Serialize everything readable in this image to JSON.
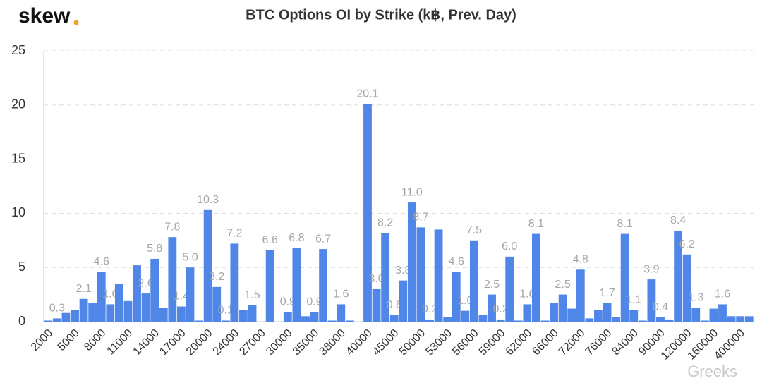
{
  "logo": "skew",
  "watermark": "Greeks",
  "chart_data": {
    "type": "bar",
    "title": "BTC Options OI by Strike (k฿, Prev. Day)",
    "categories": [
      "2000",
      null,
      null,
      "5000",
      null,
      null,
      "8000",
      null,
      null,
      "11000",
      null,
      null,
      "14000",
      null,
      null,
      "17000",
      null,
      null,
      "20000",
      null,
      null,
      "24000",
      null,
      null,
      "27000",
      null,
      null,
      "30000",
      null,
      null,
      "35000",
      null,
      null,
      "38000",
      null,
      null,
      "40000",
      null,
      null,
      "45000",
      null,
      null,
      "50000",
      null,
      null,
      "53000",
      null,
      null,
      "56000",
      null,
      null,
      "59000",
      null,
      null,
      "62000",
      null,
      null,
      "66000",
      null,
      null,
      "72000",
      null,
      null,
      "76000",
      null,
      null,
      "84000",
      null,
      null,
      "90000",
      null,
      null,
      "120000",
      null,
      null,
      "160000",
      null,
      null,
      "400000",
      null
    ],
    "values": [
      0.1,
      0.3,
      0.8,
      1.1,
      2.1,
      1.7,
      4.6,
      1.6,
      3.5,
      1.9,
      5.2,
      2.6,
      5.8,
      1.3,
      7.8,
      1.4,
      5.0,
      0.1,
      10.3,
      3.2,
      0.1,
      7.2,
      1.1,
      1.5,
      0,
      6.6,
      0,
      0.9,
      6.8,
      0.5,
      0.9,
      6.7,
      0.1,
      1.6,
      0.1,
      0,
      20.1,
      3.0,
      8.2,
      0.6,
      3.8,
      11.0,
      8.7,
      0.2,
      8.5,
      0.4,
      4.6,
      1.0,
      7.5,
      0.6,
      2.5,
      0.2,
      6.0,
      0.1,
      1.6,
      8.1,
      0.1,
      1.7,
      2.5,
      1.2,
      4.8,
      0.3,
      1.1,
      1.7,
      0.4,
      8.1,
      1.1,
      0.1,
      3.9,
      0.4,
      0.2,
      8.4,
      6.2,
      1.3,
      0.1,
      1.2,
      1.6,
      0.5,
      0.5,
      0.5
    ],
    "value_labels": [
      null,
      "0.3",
      null,
      null,
      "2.1",
      null,
      "4.6",
      "1.6",
      null,
      null,
      null,
      "2.6",
      "5.8",
      null,
      "7.8",
      "1.4",
      "5.0",
      null,
      "10.3",
      "3.2",
      "0.1",
      "7.2",
      null,
      "1.5",
      null,
      "6.6",
      null,
      "0.9",
      "6.8",
      null,
      "0.9",
      "6.7",
      null,
      "1.6",
      null,
      null,
      "20.1",
      "3.0",
      "8.2",
      "0.6",
      "3.8",
      "11.0",
      "8.7",
      "0.2",
      null,
      null,
      "4.6",
      "1.0",
      "7.5",
      null,
      "2.5",
      "0.2",
      "6.0",
      null,
      "1.6",
      "8.1",
      null,
      null,
      "2.5",
      null,
      "4.8",
      null,
      null,
      "1.7",
      null,
      "8.1",
      "1.1",
      null,
      "3.9",
      "0.4",
      null,
      "8.4",
      "6.2",
      "1.3",
      null,
      null,
      "1.6",
      null,
      null,
      null
    ],
    "color": "#4f86e8",
    "ylim": [
      0,
      25
    ],
    "yticks": [
      0,
      5,
      10,
      15,
      20,
      25
    ],
    "grid": true
  }
}
